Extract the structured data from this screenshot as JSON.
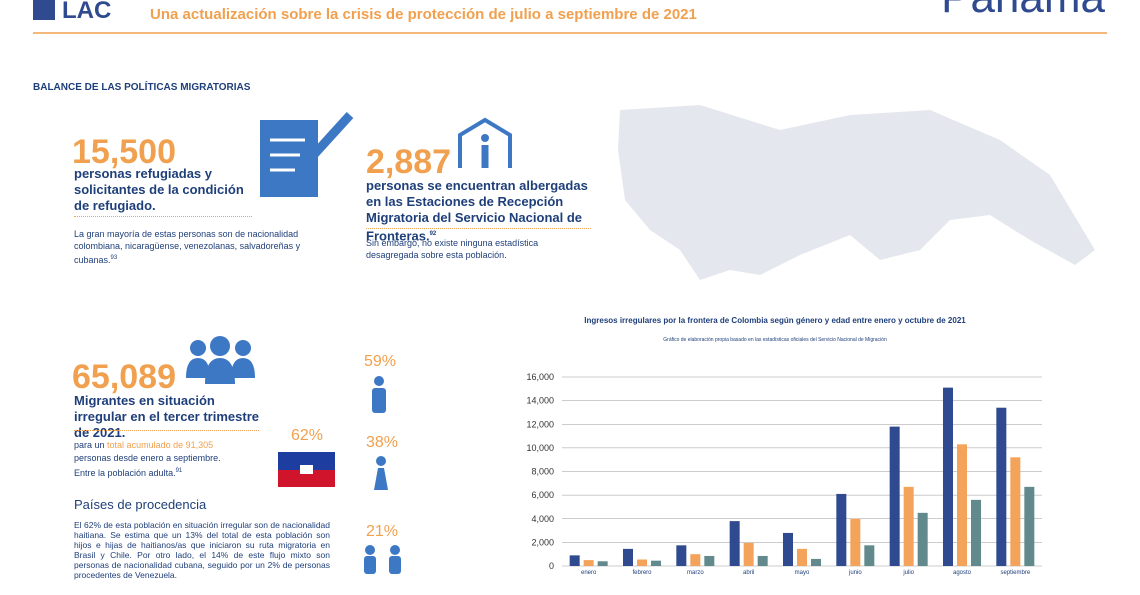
{
  "header": {
    "logo": "LAC",
    "title": "Una actualización sobre la crisis de protección de julio a septiembre de 2021",
    "country": "Panama"
  },
  "section_title": "BALANCE DE LAS POLÍTICAS MIGRATORIAS",
  "refugees": {
    "number": "15,500",
    "text": "personas refugiadas y solicitantes de la condición de refugiado.",
    "note": "La gran mayoría de estas personas son de nacionalidad colombiana, nicaragüense, venezolanas, salvadoreñas y cubanas.",
    "note_ref": "93"
  },
  "shelter": {
    "number": "2,887",
    "text": "personas se encuentran albergadas en las Estaciones de Recepción Migratoria del Servicio Nacional de Fronteras.",
    "text_ref": "92",
    "note": "Sin embargo, no existe ninguna estadística desagregada sobre esta población."
  },
  "migrants": {
    "number": "65,089",
    "text": "Migrantes en situación irregular en el tercer trimestre de 2021.",
    "note_start": "para un",
    "note_highlight": "total acumulado de 91,305",
    "note_end": "personas desde enero a septiembre.",
    "note_adult": "Entre la población adulta.",
    "note_ref": "91"
  },
  "origin": {
    "title": "Países de procedencia",
    "text": "El 62% de esta población en situación irregular son de nacionalidad haitiana. Se estima que un 13% del total de esta población son hijos e hijas de haitianos/as que iniciaron su ruta migratoria en Brasil y Chile. Por otro lado, el 14% de este flujo mixto son personas de nacionalidad cubana, seguido por un 2% de personas procedentes de Venezuela.",
    "haiti_share": "62%",
    "men_share": "59%",
    "women_share": "38%",
    "children_share": "21%"
  },
  "chart_data": {
    "type": "bar",
    "title": "Ingresos irregulares por la frontera de Colombia según género y edad entre enero y octubre de 2021",
    "subtitle": "Gráfico de elaboración propia basado en las estadísticas oficiales del Servicio Nacional de Migración",
    "categories": [
      "enero",
      "febrero",
      "marzo",
      "abril",
      "mayo",
      "junio",
      "julio",
      "agosto",
      "septiembre"
    ],
    "series": [
      {
        "color": "#2f4a8f",
        "values": [
          900,
          1450,
          1750,
          3800,
          2800,
          6100,
          11800,
          15100,
          13400
        ]
      },
      {
        "color": "#f3a45a",
        "values": [
          500,
          550,
          1000,
          1950,
          1450,
          4000,
          6700,
          10300,
          9200
        ]
      },
      {
        "color": "#62898c",
        "values": [
          400,
          450,
          850,
          850,
          600,
          1750,
          4500,
          5600,
          6700
        ]
      }
    ],
    "ylim": [
      0,
      16000
    ],
    "yticks": [
      0,
      {
        "value": 2000,
        "label": "2,000"
      },
      {
        "value": 4000,
        "label": "4,000"
      },
      {
        "value": 6000,
        "label": "6,000"
      },
      {
        "value": 8000,
        "label": "8,000"
      },
      {
        "value": 10000,
        "label": "10,000"
      },
      {
        "value": 12000,
        "label": "12,000"
      },
      {
        "value": 14000,
        "label": "14,000"
      },
      {
        "value": 16000,
        "label": "16,000"
      }
    ],
    "grid": true
  }
}
